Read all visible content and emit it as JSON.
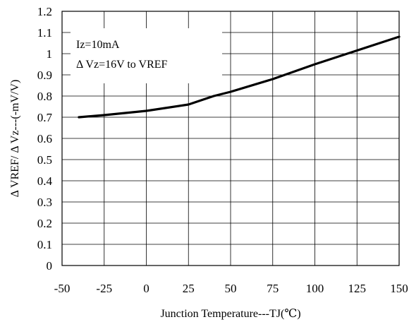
{
  "chart_data": {
    "type": "line",
    "title": "",
    "xlabel": "Junction Temperature---TJ(℃)",
    "ylabel": "Δ VREF/ Δ Vz---(-mV/V)",
    "xlim": [
      -50,
      150
    ],
    "ylim": [
      0,
      1.2
    ],
    "x_ticks": [
      "-50",
      "-25",
      "0",
      "25",
      "50",
      "75",
      "100",
      "125",
      "150"
    ],
    "y_ticks": [
      "0",
      "0.1",
      "0.2",
      "0.3",
      "0.4",
      "0.5",
      "0.6",
      "0.7",
      "0.8",
      "0.9",
      "1",
      "1.1",
      "1.2"
    ],
    "grid": true,
    "annotations": [
      "Iz=10mA",
      "Δ Vz=16V to VREF"
    ],
    "series": [
      {
        "x": [
          -40,
          -25,
          0,
          25,
          40,
          50,
          75,
          100,
          125,
          150
        ],
        "y": [
          0.7,
          0.71,
          0.73,
          0.76,
          0.8,
          0.82,
          0.88,
          0.95,
          1.015,
          1.08
        ]
      }
    ]
  }
}
